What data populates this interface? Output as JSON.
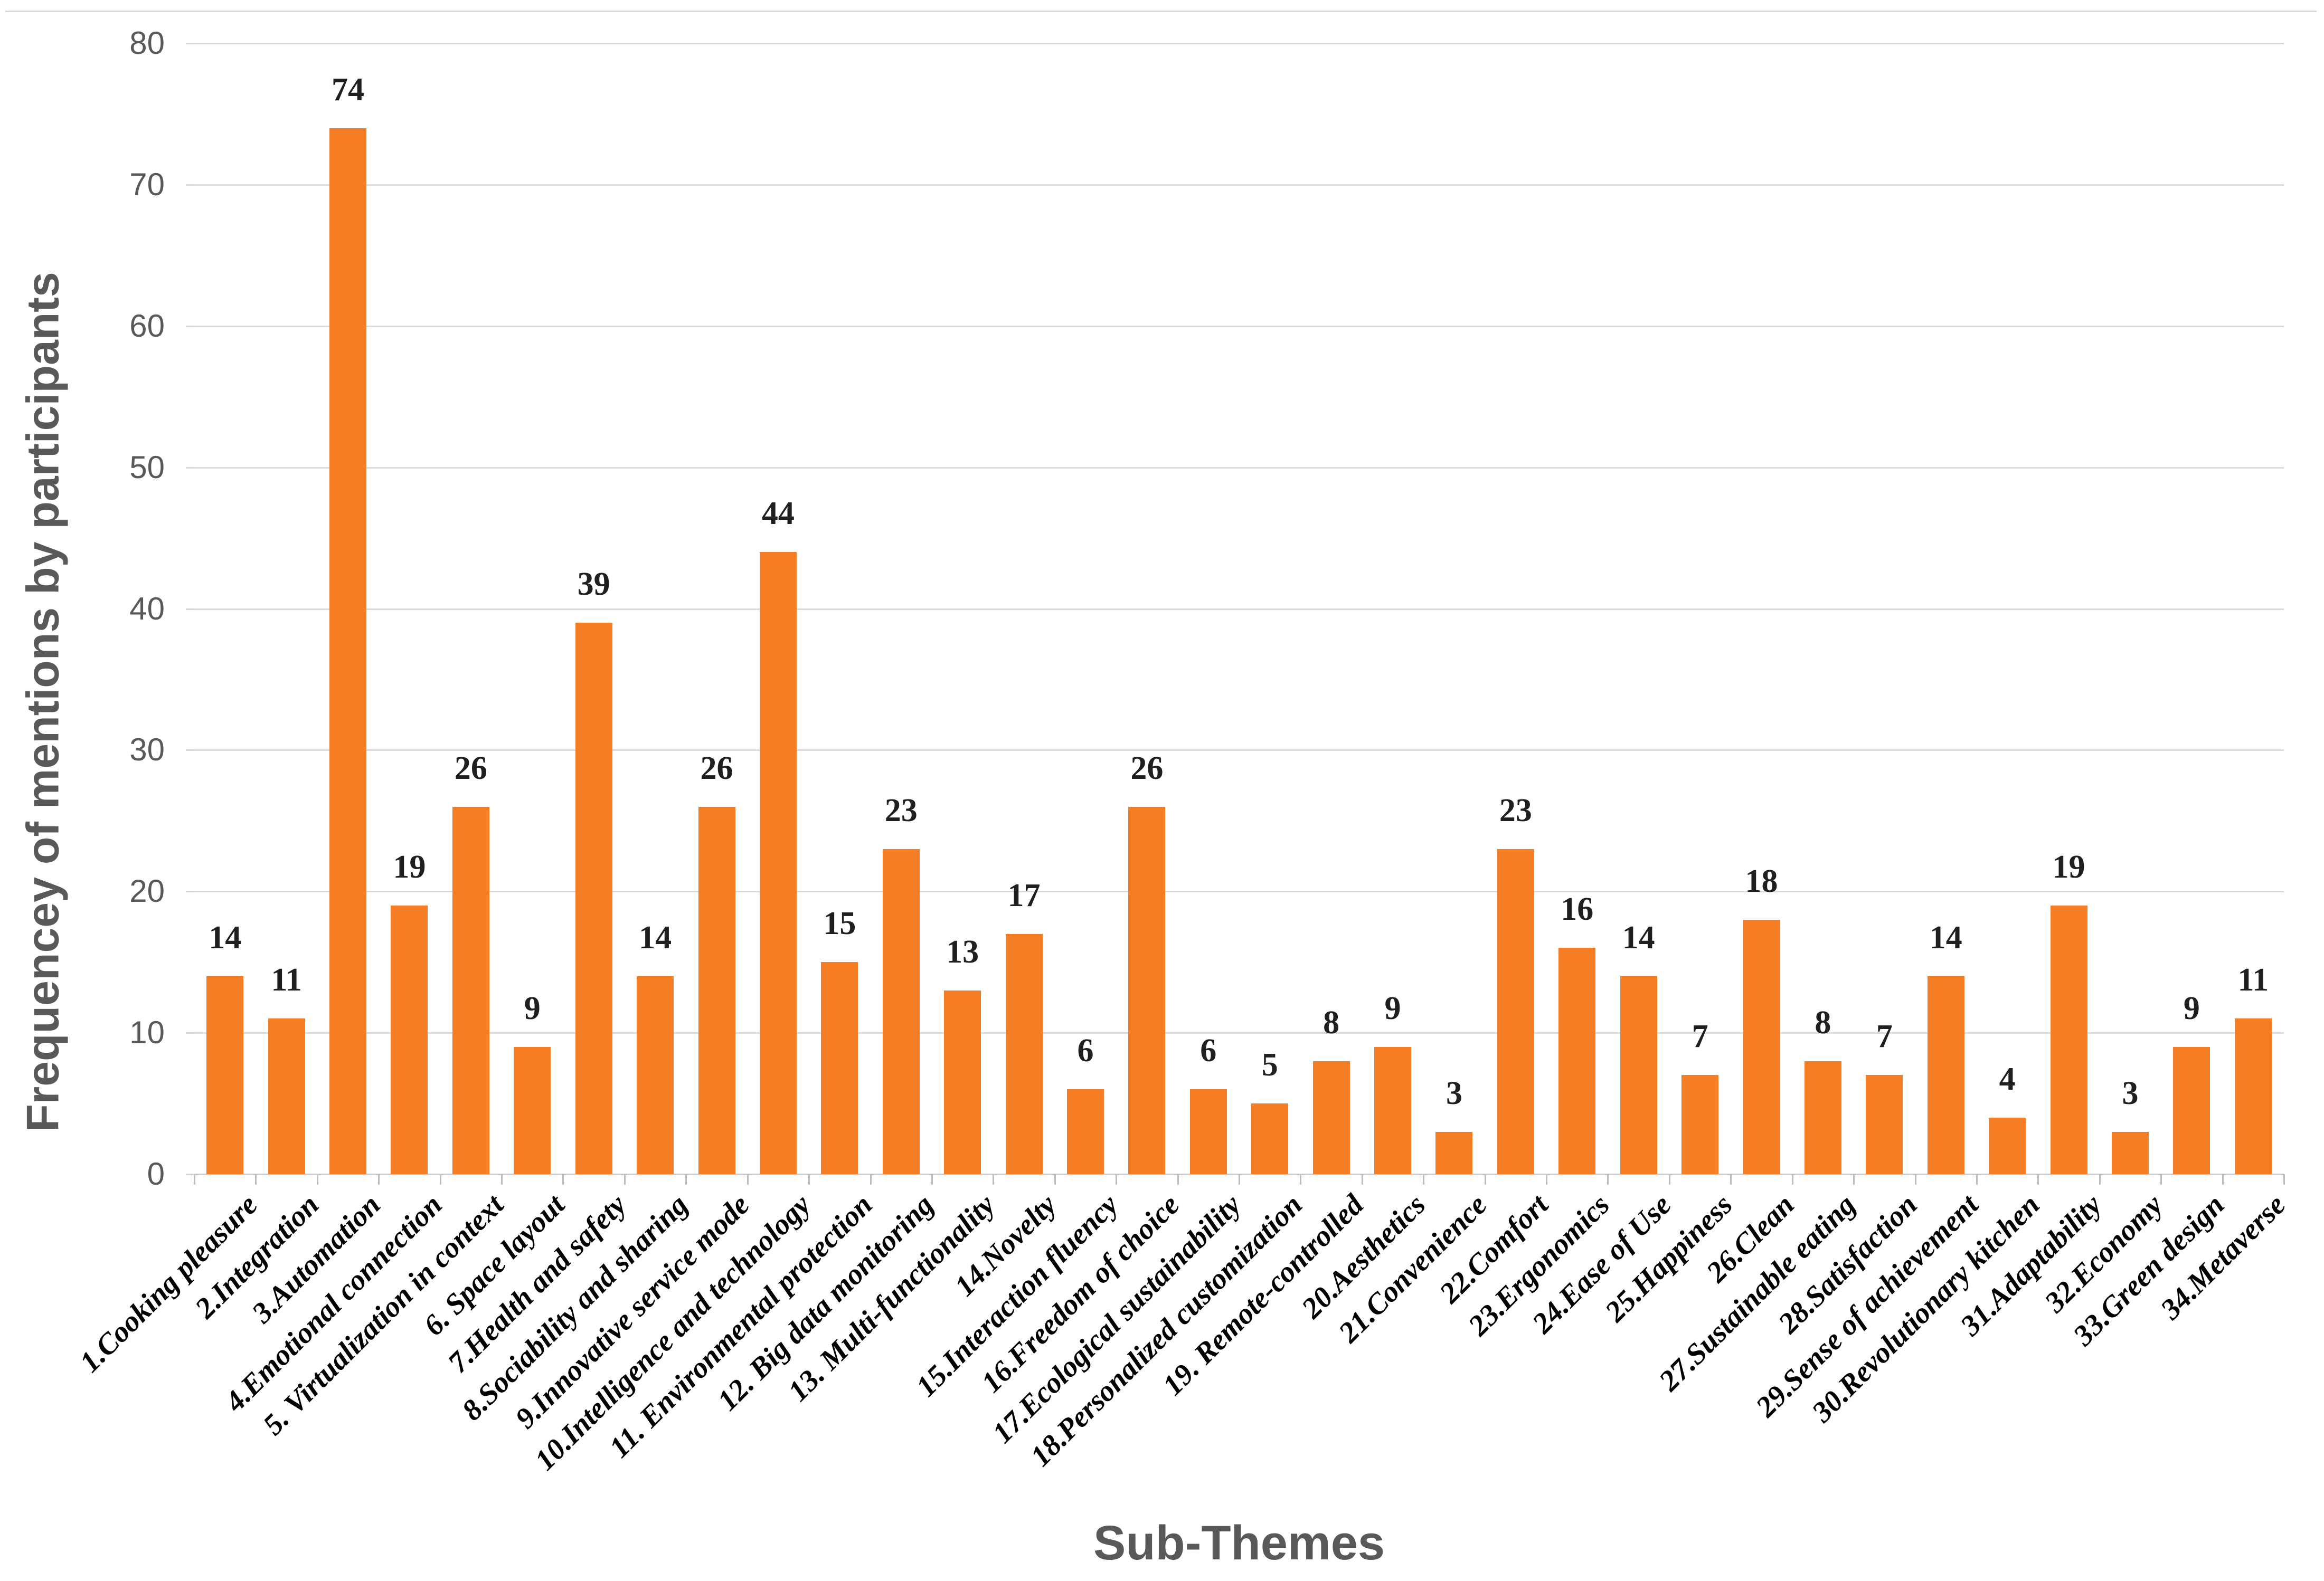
{
  "chart_data": {
    "type": "bar",
    "title": "",
    "xlabel": "Sub-Themes",
    "ylabel": "Frequencey of mentions by participants",
    "ylim": [
      0,
      80
    ],
    "yticks": [
      0,
      10,
      20,
      30,
      40,
      50,
      60,
      70,
      80
    ],
    "grid": true,
    "legend": "none",
    "bar_color": "#f57d24",
    "gridline_color": "#dcdcdc",
    "axis_text_color": "#595959",
    "data_label_color": "#1f1f1f",
    "categories": [
      "1.Cooking pleasure",
      "2.Integration",
      "3.Automation",
      "4.Emotional connection",
      "5. Virtualization in context",
      "6. Space layout",
      "7.Health and safety",
      "8.Sociability and sharing",
      "9.Innovative service mode",
      "10.Intelligence and technology",
      "11. Environmental protection",
      "12. Big data monitoring",
      "13. Multi-functionality",
      "14.Novelty",
      "15.Interaction fluency",
      "16.Freedom of choice",
      "17.Ecological sustainability",
      "18.Personalized customization",
      "19. Remote-controlled",
      "20.Aesthetics",
      "21.Convenience",
      "22.Comfort",
      "23.Ergonomics",
      "24.Ease of Use",
      "25.Happiness",
      "26.Clean",
      "27.Sustainable eating",
      "28.Satisfaction",
      "29.Sense of achievement",
      "30.Revolutionary kitchen",
      "31.Adaptability",
      "32.Economy",
      "33.Green design",
      "34.Metaverse"
    ],
    "values": [
      14,
      11,
      74,
      19,
      26,
      9,
      39,
      14,
      26,
      44,
      15,
      23,
      13,
      17,
      6,
      26,
      6,
      5,
      8,
      9,
      3,
      23,
      16,
      14,
      7,
      18,
      8,
      7,
      14,
      4,
      19,
      3,
      9,
      11
    ]
  }
}
